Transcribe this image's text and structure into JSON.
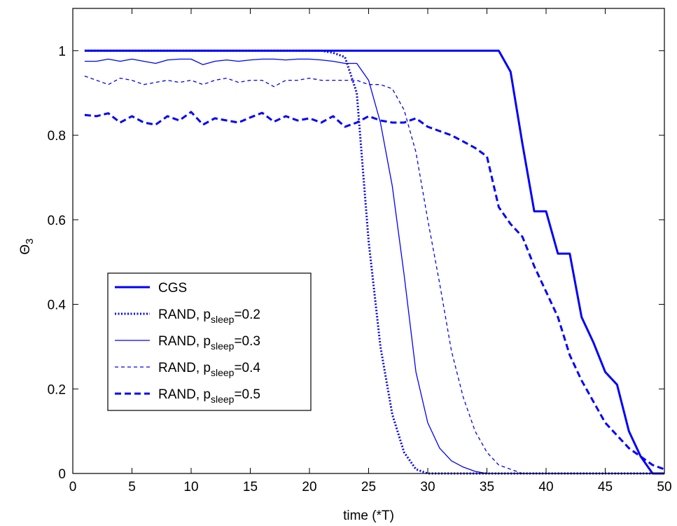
{
  "chart_data": {
    "type": "line",
    "title": "",
    "xlabel": "time (*T)",
    "ylabel_main": "Θ",
    "ylabel_sub": "3",
    "xlim": [
      0,
      50
    ],
    "ylim": [
      0,
      1.1
    ],
    "xticks": [
      0,
      5,
      10,
      15,
      20,
      25,
      30,
      35,
      40,
      45,
      50
    ],
    "yticks": [
      0,
      0.2,
      0.4,
      0.6,
      0.8,
      1
    ],
    "xtick_labels": [
      "0",
      "5",
      "10",
      "15",
      "20",
      "25",
      "30",
      "35",
      "40",
      "45",
      "50"
    ],
    "ytick_labels": [
      "0",
      "0.2",
      "0.4",
      "0.6",
      "0.8",
      "1"
    ],
    "grid": false,
    "legend_position": "lower-left",
    "line_color": "#0000ff",
    "series": [
      {
        "legend_main": "CGS",
        "legend_sub": "",
        "legend_tail": "",
        "style": "solid-thick",
        "x": [
          1,
          2,
          3,
          4,
          5,
          6,
          7,
          8,
          9,
          10,
          11,
          12,
          13,
          14,
          15,
          16,
          17,
          18,
          19,
          20,
          21,
          22,
          23,
          24,
          25,
          26,
          27,
          28,
          29,
          30,
          31,
          32,
          33,
          34,
          35,
          36,
          37,
          38,
          39,
          40,
          41,
          42,
          43,
          44,
          45,
          46,
          47,
          48,
          49,
          50
        ],
        "y": [
          1,
          1,
          1,
          1,
          1,
          1,
          1,
          1,
          1,
          1,
          1,
          1,
          1,
          1,
          1,
          1,
          1,
          1,
          1,
          1,
          1,
          1,
          1,
          1,
          1,
          1,
          1,
          1,
          1,
          1,
          1,
          1,
          1,
          1,
          1,
          1,
          0.95,
          0.78,
          0.62,
          0.62,
          0.52,
          0.52,
          0.37,
          0.31,
          0.24,
          0.21,
          0.1,
          0.04,
          0,
          0
        ]
      },
      {
        "legend_main": "RAND, p",
        "legend_sub": "sleep",
        "legend_tail": "=0.2",
        "style": "dotted",
        "x": [
          1,
          2,
          3,
          4,
          5,
          6,
          7,
          8,
          9,
          10,
          11,
          12,
          13,
          14,
          15,
          16,
          17,
          18,
          19,
          20,
          21,
          22,
          23,
          24,
          25,
          26,
          27,
          28,
          29,
          30,
          31,
          32,
          33,
          34,
          35,
          36,
          37,
          38,
          39,
          40,
          41,
          42,
          43,
          44,
          45,
          46,
          47,
          48,
          49,
          50
        ],
        "y": [
          1,
          1,
          1,
          1,
          1,
          1,
          1,
          1,
          1,
          1,
          1,
          1,
          1,
          1,
          1,
          1,
          1,
          1,
          1,
          1,
          1,
          0.995,
          0.985,
          0.9,
          0.55,
          0.3,
          0.14,
          0.05,
          0.01,
          0,
          0,
          0,
          0,
          0,
          0,
          0,
          0,
          0,
          0,
          0,
          0,
          0,
          0,
          0,
          0,
          0,
          0,
          0,
          0,
          0
        ]
      },
      {
        "legend_main": "RAND, p",
        "legend_sub": "sleep",
        "legend_tail": "=0.3",
        "style": "solid-thin",
        "x": [
          1,
          2,
          3,
          4,
          5,
          6,
          7,
          8,
          9,
          10,
          11,
          12,
          13,
          14,
          15,
          16,
          17,
          18,
          19,
          20,
          21,
          22,
          23,
          24,
          25,
          26,
          27,
          28,
          29,
          30,
          31,
          32,
          33,
          34,
          35,
          36,
          37,
          38,
          39,
          40,
          41,
          42,
          43,
          44,
          45,
          46,
          47,
          48,
          49,
          50
        ],
        "y": [
          0.975,
          0.975,
          0.98,
          0.975,
          0.98,
          0.975,
          0.97,
          0.978,
          0.98,
          0.98,
          0.967,
          0.975,
          0.978,
          0.975,
          0.978,
          0.98,
          0.98,
          0.978,
          0.98,
          0.98,
          0.978,
          0.975,
          0.97,
          0.97,
          0.93,
          0.83,
          0.68,
          0.47,
          0.24,
          0.12,
          0.06,
          0.03,
          0.015,
          0.005,
          0,
          0,
          0,
          0,
          0,
          0,
          0,
          0,
          0,
          0,
          0,
          0,
          0,
          0,
          0,
          0
        ]
      },
      {
        "legend_main": "RAND, p",
        "legend_sub": "sleep",
        "legend_tail": "=0.4",
        "style": "dashed-thin",
        "x": [
          1,
          2,
          3,
          4,
          5,
          6,
          7,
          8,
          9,
          10,
          11,
          12,
          13,
          14,
          15,
          16,
          17,
          18,
          19,
          20,
          21,
          22,
          23,
          24,
          25,
          26,
          27,
          28,
          29,
          30,
          31,
          32,
          33,
          34,
          35,
          36,
          37,
          38,
          39,
          40,
          41,
          42,
          43,
          44,
          45,
          46,
          47,
          48,
          49,
          50
        ],
        "y": [
          0.94,
          0.93,
          0.92,
          0.935,
          0.93,
          0.92,
          0.925,
          0.93,
          0.925,
          0.93,
          0.92,
          0.93,
          0.935,
          0.925,
          0.93,
          0.93,
          0.915,
          0.93,
          0.93,
          0.935,
          0.93,
          0.93,
          0.93,
          0.93,
          0.92,
          0.92,
          0.91,
          0.86,
          0.76,
          0.6,
          0.45,
          0.29,
          0.18,
          0.1,
          0.05,
          0.02,
          0.01,
          0,
          0,
          0,
          0,
          0,
          0,
          0,
          0,
          0,
          0,
          0,
          0,
          0
        ]
      },
      {
        "legend_main": "RAND, p",
        "legend_sub": "sleep",
        "legend_tail": "=0.5",
        "style": "dashed-thick",
        "x": [
          1,
          2,
          3,
          4,
          5,
          6,
          7,
          8,
          9,
          10,
          11,
          12,
          13,
          14,
          15,
          16,
          17,
          18,
          19,
          20,
          21,
          22,
          23,
          24,
          25,
          26,
          27,
          28,
          29,
          30,
          31,
          32,
          33,
          34,
          35,
          36,
          37,
          38,
          39,
          40,
          41,
          42,
          43,
          44,
          45,
          46,
          47,
          48,
          49,
          50
        ],
        "y": [
          0.848,
          0.845,
          0.852,
          0.83,
          0.845,
          0.83,
          0.825,
          0.845,
          0.835,
          0.855,
          0.825,
          0.84,
          0.835,
          0.83,
          0.842,
          0.853,
          0.832,
          0.845,
          0.835,
          0.84,
          0.83,
          0.845,
          0.82,
          0.83,
          0.845,
          0.835,
          0.83,
          0.83,
          0.84,
          0.82,
          0.81,
          0.8,
          0.785,
          0.77,
          0.75,
          0.63,
          0.59,
          0.56,
          0.49,
          0.43,
          0.37,
          0.28,
          0.22,
          0.17,
          0.12,
          0.09,
          0.06,
          0.04,
          0.02,
          0.01
        ]
      }
    ]
  }
}
